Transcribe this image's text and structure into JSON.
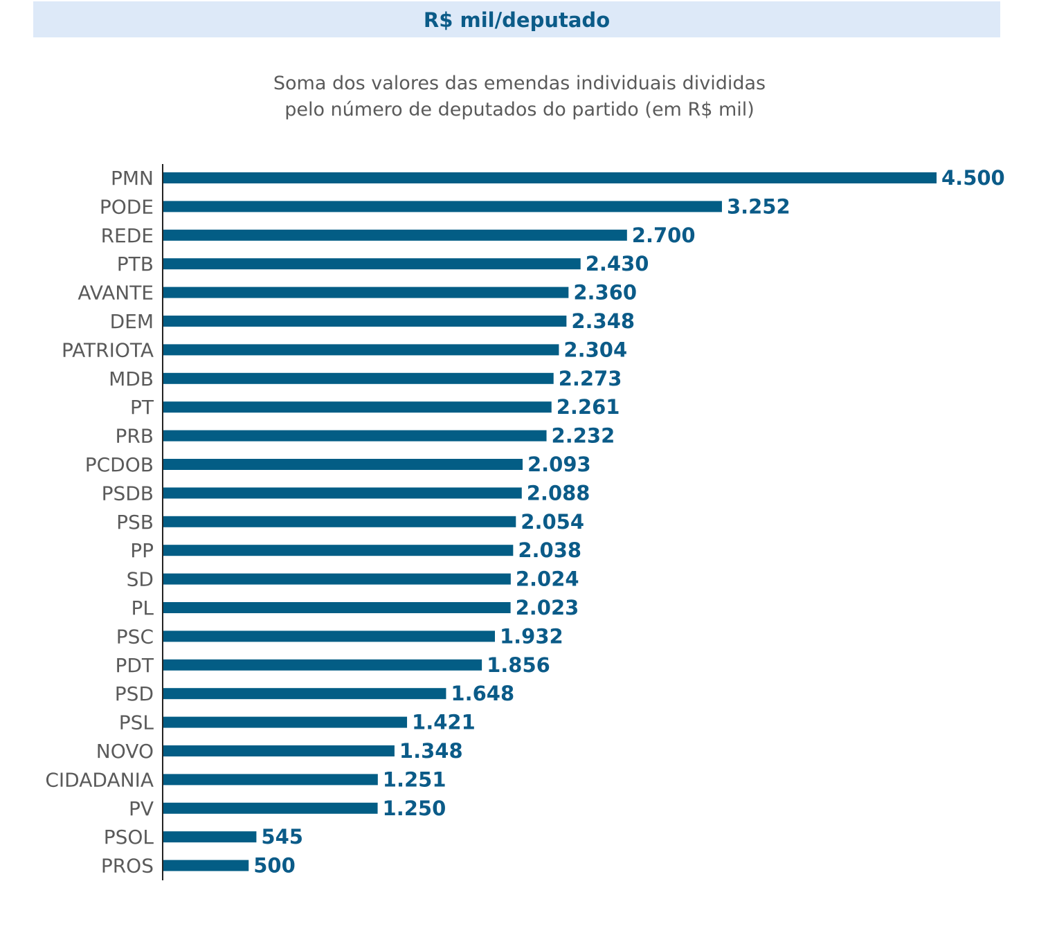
{
  "header": {
    "title": "R$ mil/deputado"
  },
  "subtitle": {
    "line1": "Soma dos valores das emendas individuais divididas",
    "line2": "pelo número de deputados do partido (em R$ mil)"
  },
  "chart_data": {
    "type": "bar",
    "orientation": "horizontal",
    "title": "R$ mil/deputado",
    "subtitle": "Soma dos valores das emendas individuais divididas pelo número de deputados do partido (em R$ mil)",
    "xlabel": "",
    "ylabel": "",
    "xlim": [
      0,
      4500
    ],
    "grid": false,
    "categories": [
      "PMN",
      "PODE",
      "REDE",
      "PTB",
      "AVANTE",
      "DEM",
      "PATRIOTA",
      "MDB",
      "PT",
      "PRB",
      "PCDOB",
      "PSDB",
      "PSB",
      "PP",
      "SD",
      "PL",
      "PSC",
      "PDT",
      "PSD",
      "PSL",
      "NOVO",
      "CIDADANIA",
      "PV",
      "PSOL",
      "PROS"
    ],
    "values": [
      4500,
      3252,
      2700,
      2430,
      2360,
      2348,
      2304,
      2273,
      2261,
      2232,
      2093,
      2088,
      2054,
      2038,
      2024,
      2023,
      1932,
      1856,
      1648,
      1421,
      1348,
      1251,
      1250,
      545,
      500
    ],
    "value_labels": [
      "4.500",
      "3.252",
      "2.700",
      "2.430",
      "2.360",
      "2.348",
      "2.304",
      "2.273",
      "2.261",
      "2.232",
      "2.093",
      "2.088",
      "2.054",
      "2.038",
      "2.024",
      "2.023",
      "1.932",
      "1.856",
      "1.648",
      "1.421",
      "1.348",
      "1.251",
      "1.250",
      "545",
      "500"
    ],
    "colors": {
      "bar": "#035d85",
      "label": "#0b5b88",
      "category": "#5a5a5a"
    }
  }
}
